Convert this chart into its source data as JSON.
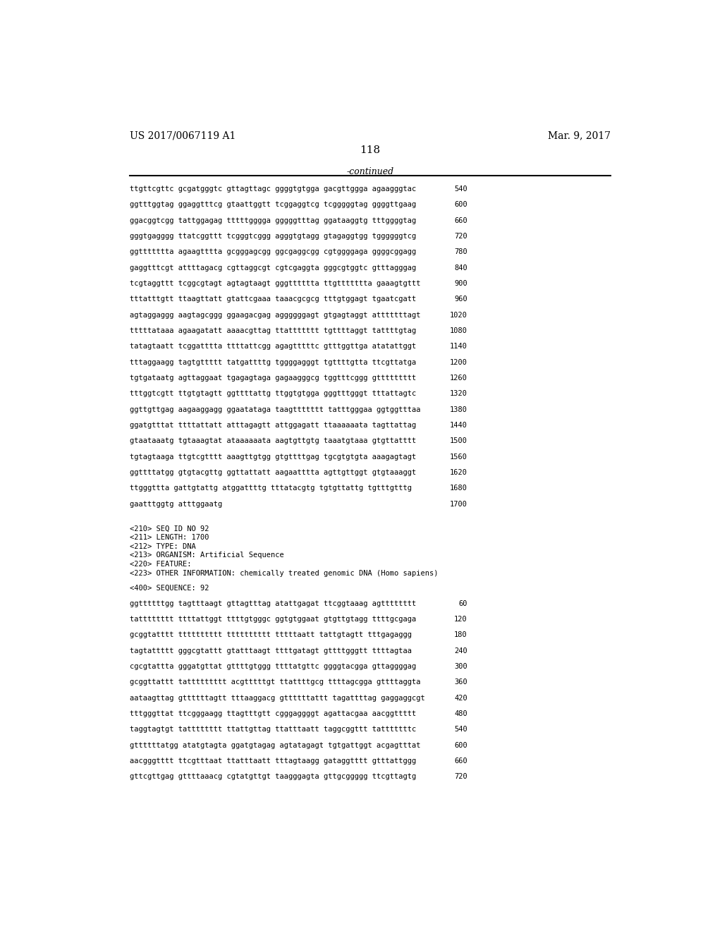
{
  "header_left": "US 2017/0067119 A1",
  "header_right": "Mar. 9, 2017",
  "page_number": "118",
  "continued_label": "-continued",
  "bg": "#ffffff",
  "fg": "#000000",
  "top_seq": [
    [
      "ttgttcgttc gcgatgggtc gttagttagc ggggtgtgga gacgttggga agaagggtac",
      "540"
    ],
    [
      "ggtttggtag ggaggtttcg gtaattggtt tcggaggtcg tcgggggtag ggggttgaag",
      "600"
    ],
    [
      "ggacggtcgg tattggagag tttttgggga gggggtttag ggataaggtg tttggggtag",
      "660"
    ],
    [
      "gggtgagggg ttatcggttt tcgggtcggg agggtgtagg gtagaggtgg tggggggtcg",
      "720"
    ],
    [
      "ggttttttta agaagtttta gcgggagcgg ggcgaggcgg cgtggggaga ggggcggagg",
      "780"
    ],
    [
      "gaggtttcgt attttagacg cgttaggcgt cgtcgaggta gggcgtggtc gtttagggag",
      "840"
    ],
    [
      "tcgtaggttt tcggcgtagt agtagtaagt gggtttttta ttgttttttta gaaagtgttt",
      "900"
    ],
    [
      "tttatttgtt ttaagttatt gtattcgaaa taaacgcgcg tttgtggagt tgaatcgatt",
      "960"
    ],
    [
      "agtaggaggg aagtagcggg ggaagacgag aggggggagt gtgagtaggt atttttttagt",
      "1020"
    ],
    [
      "tttttataaa agaagatatt aaaacgttag ttattttttt tgttttaggt tattttgtag",
      "1080"
    ],
    [
      "tatagtaatt tcggatttta ttttattcgg agagtttttc gtttggttga atatattggt",
      "1140"
    ],
    [
      "tttaggaagg tagtgttttt tatgattttg tggggagggt tgttttgtta ttcgttatga",
      "1200"
    ],
    [
      "tgtgataatg agttaggaat tgagagtaga gagaagggcg tggtttcggg gttttttttt",
      "1260"
    ],
    [
      "tttggtcgtt ttgtgtagtt ggttttattg ttggtgtgga gggtttgggt tttattagtc",
      "1320"
    ],
    [
      "ggttgttgag aagaaggagg ggaatataga taagttttttt tatttgggaa ggtggtttaa",
      "1380"
    ],
    [
      "ggatgtttat ttttattatt atttagagtt attggagatt ttaaaaaata tagttattag",
      "1440"
    ],
    [
      "gtaataaatg tgtaaagtat ataaaaaata aagtgttgtg taaatgtaaa gtgttatttt",
      "1500"
    ],
    [
      "tgtagtaaga ttgtcgtttt aaagttgtgg gtgttttgag tgcgtgtgta aaagagtagt",
      "1560"
    ],
    [
      "ggttttatgg gtgtacgttg ggttattatt aagaatttta agttgttggt gtgtaaaggt",
      "1620"
    ],
    [
      "ttgggttta gattgtattg atggattttg tttatacgtg tgtgttattg tgtttgtttg",
      "1680"
    ],
    [
      "gaatttggtg atttggaatg",
      "1700"
    ]
  ],
  "meta": [
    "<210> SEQ ID NO 92",
    "<211> LENGTH: 1700",
    "<212> TYPE: DNA",
    "<213> ORGANISM: Artificial Sequence",
    "<220> FEATURE:",
    "<223> OTHER INFORMATION: chemically treated genomic DNA (Homo sapiens)"
  ],
  "seq2_header": "<400> SEQUENCE: 92",
  "seq2": [
    [
      "ggttttttgg tagtttaagt gttagtttag atattgagat ttcggtaaag agtttttttt",
      "60"
    ],
    [
      "tatttttttt ttttattggt ttttgtgggc ggtgtggaat gtgttgtagg ttttgcgaga",
      "120"
    ],
    [
      "gcggtatttt tttttttttt tttttttttt tttttaatt tattgtagtt tttgagaggg",
      "180"
    ],
    [
      "tagtattttt gggcgtattt gtatttaagt ttttgatagt gttttgggtt ttttagtaa",
      "240"
    ],
    [
      "cgcgtattta gggatgttat gttttgtggg ttttatgttc ggggtacgga gttaggggag",
      "300"
    ],
    [
      "gcggttattt tattttttttt acgtttttgt ttattttgcg ttttagcgga gttttaggta",
      "360"
    ],
    [
      "aataagttag gttttttagtt tttaaggacg gttttttattt tagattttag gaggaggcgt",
      "420"
    ],
    [
      "tttgggttat ttcgggaagg ttagtttgtt cgggaggggt agattacgaa aacggttttt",
      "480"
    ],
    [
      "taggtagtgt tatttttttt ttattgttag ttatttaatt taggcggttt tatttttttc",
      "540"
    ],
    [
      "gttttttatgg atatgtagta ggatgtagag agtatagagt tgtgattggt acgagtttat",
      "600"
    ],
    [
      "aacgggtttt ttcgtttaat ttatttaatt tttagtaagg gataggtttt gtttattggg",
      "660"
    ],
    [
      "gttcgttgag gttttaaacg cgtatgttgt taagggagta gttgcggggg ttcgttagtg",
      "720"
    ]
  ]
}
